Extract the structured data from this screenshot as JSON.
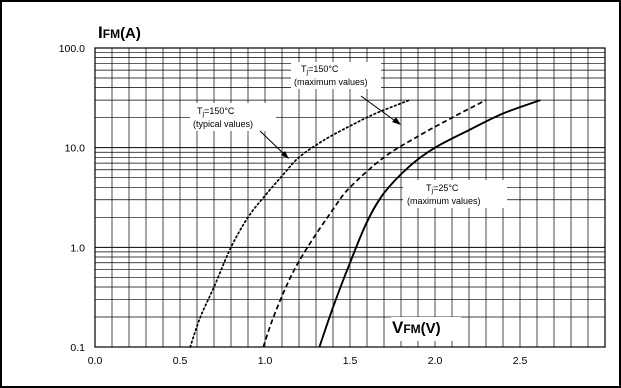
{
  "chart_data": {
    "type": "line",
    "ylabel": "IFM(A)",
    "xlabel": "VFM(V)",
    "ylabel_main": "I",
    "ylabel_sub": "FM",
    "ylabel_unit": "(A)",
    "xlabel_main": "V",
    "xlabel_sub": "FM",
    "xlabel_unit": "(V)",
    "xlim": [
      0.0,
      3.0
    ],
    "ylim": [
      0.1,
      100.0
    ],
    "y_scale": "log",
    "grid": true,
    "x_ticks": [
      "0.0",
      "0.5",
      "1.0",
      "1.5",
      "2.0",
      "2.5"
    ],
    "y_ticks": [
      "100.0",
      "10.0",
      "1.0",
      "0.1"
    ],
    "series": [
      {
        "style": "dotted",
        "annotation": [
          "Tj=150°C",
          "(typical values)"
        ],
        "points": [
          [
            0.56,
            0.1
          ],
          [
            0.62,
            0.2
          ],
          [
            0.7,
            0.4
          ],
          [
            0.8,
            1.0
          ],
          [
            0.9,
            2.0
          ],
          [
            1.0,
            3.3
          ],
          [
            1.1,
            5.2
          ],
          [
            1.2,
            8.0
          ],
          [
            1.35,
            12.0
          ],
          [
            1.5,
            16.5
          ],
          [
            1.65,
            22.0
          ],
          [
            1.85,
            30.0
          ]
        ]
      },
      {
        "style": "dashed",
        "annotation": [
          "Tj=150°C",
          "(maximum values)"
        ],
        "points": [
          [
            0.99,
            0.1
          ],
          [
            1.05,
            0.2
          ],
          [
            1.15,
            0.5
          ],
          [
            1.25,
            1.0
          ],
          [
            1.4,
            2.4
          ],
          [
            1.5,
            4.0
          ],
          [
            1.7,
            8.0
          ],
          [
            1.9,
            13.0
          ],
          [
            2.1,
            20.0
          ],
          [
            2.3,
            30.0
          ]
        ]
      },
      {
        "style": "solid",
        "annotation": [
          "Tj=25°C",
          "(maximum values)"
        ],
        "points": [
          [
            1.32,
            0.1
          ],
          [
            1.4,
            0.25
          ],
          [
            1.5,
            0.7
          ],
          [
            1.6,
            1.8
          ],
          [
            1.7,
            3.5
          ],
          [
            1.85,
            6.5
          ],
          [
            2.0,
            10.0
          ],
          [
            2.2,
            15.0
          ],
          [
            2.4,
            22.0
          ],
          [
            2.62,
            30.0
          ]
        ]
      }
    ]
  },
  "annotations": {
    "typ150_line1_main": "T",
    "typ150_line1_sub": "j",
    "typ150_line1_rest": "=150°C",
    "typ150_line2": "(typical values)",
    "max150_line1_main": "T",
    "max150_line1_sub": "j",
    "max150_line1_rest": "=150°C",
    "max150_line2": "(maximum values)",
    "max25_line1_main": "T",
    "max25_line1_sub": "j",
    "max25_line1_rest": "=25°C",
    "max25_line2": "(maximum values)"
  }
}
